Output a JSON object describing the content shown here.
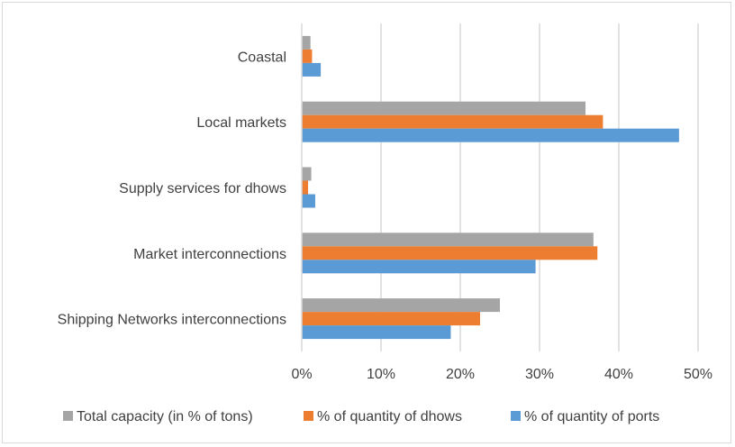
{
  "chart_data": {
    "type": "bar",
    "orientation": "horizontal",
    "title": "",
    "xlabel": "",
    "ylabel": "",
    "categories": [
      "Coastal",
      "Local markets",
      "Supply services for dhows",
      "Market interconnections",
      "Shipping Networks interconnections"
    ],
    "series": [
      {
        "name": "Total capacity (in % of tons)",
        "color": "#a5a5a5",
        "values": [
          1.1,
          35.8,
          1.2,
          36.8,
          25.0
        ]
      },
      {
        "name": "% of quantity of dhows",
        "color": "#ed7d31",
        "values": [
          1.3,
          38.0,
          0.8,
          37.3,
          22.5
        ]
      },
      {
        "name": "% of quantity of ports",
        "color": "#5b9bd5",
        "values": [
          2.4,
          47.6,
          1.7,
          29.5,
          18.8
        ]
      }
    ],
    "xlim": [
      0,
      50
    ],
    "xticks": [
      "0%",
      "10%",
      "20%",
      "30%",
      "40%",
      "50%"
    ],
    "grid": true,
    "legend_position": "bottom"
  }
}
